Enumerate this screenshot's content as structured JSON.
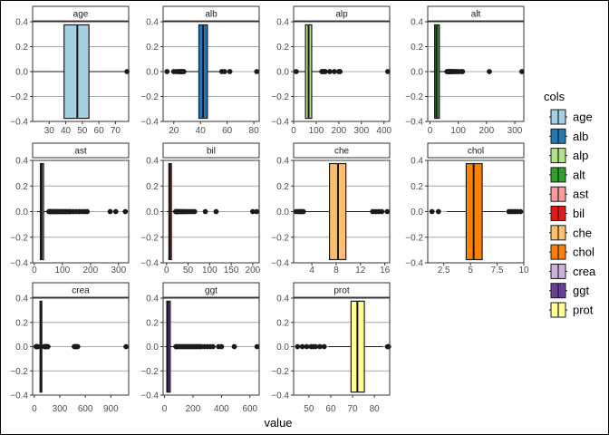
{
  "chart_data": {
    "type": "boxplot",
    "xlabel": "value",
    "legend": {
      "title": "cols",
      "position": "right"
    },
    "facets": [
      {
        "name": "age",
        "color": "#a6cee3",
        "stats": {
          "whisker_low": 19,
          "q1": 39,
          "median": 47,
          "q3": 54,
          "whisker_high": 77
        },
        "outliers": [
          77
        ],
        "xlim": [
          20,
          78
        ],
        "xticks": [
          30,
          40,
          50,
          60,
          70
        ],
        "ylim": [
          -0.4,
          0.4
        ],
        "yticks": [
          -0.4,
          -0.2,
          0.0,
          0.2,
          0.4
        ]
      },
      {
        "name": "alb",
        "color": "#1f78b4",
        "stats": {
          "whisker_low": 28,
          "q1": 38.8,
          "median": 41.9,
          "q3": 45.2,
          "whisker_high": 54.5
        },
        "outliers": [
          14.9,
          20,
          22,
          23,
          24,
          25,
          25.5,
          26,
          27,
          27.5,
          56,
          58,
          62,
          82.2
        ],
        "xlim": [
          12,
          84
        ],
        "xticks": [
          20,
          40,
          60,
          80
        ],
        "ylim": [
          -0.4,
          0.4
        ],
        "yticks": [
          -0.4,
          -0.2,
          0.0,
          0.2,
          0.4
        ]
      },
      {
        "name": "alp",
        "color": "#b2df8a",
        "stats": {
          "whisker_low": 21,
          "q1": 52.5,
          "median": 66.2,
          "q3": 80.1,
          "whisker_high": 121
        },
        "outliers": [
          11.3,
          125,
          128,
          135,
          140,
          160,
          180,
          200,
          205,
          416.6
        ],
        "xlim": [
          0,
          425
        ],
        "xticks": [
          0,
          100,
          200,
          300,
          400
        ],
        "ylim": [
          -0.4,
          0.4
        ],
        "yticks": [
          -0.4,
          -0.2,
          0.0,
          0.2,
          0.4
        ]
      },
      {
        "name": "alt",
        "color": "#33a02c",
        "stats": {
          "whisker_low": 0.9,
          "q1": 16.4,
          "median": 23,
          "q3": 33.1,
          "whisker_high": 58
        },
        "outliers": [
          60,
          62,
          65,
          68,
          70,
          72,
          75,
          78,
          80,
          85,
          90,
          95,
          100,
          110,
          115,
          210,
          325.3
        ],
        "xlim": [
          -8,
          332
        ],
        "xticks": [
          0,
          100,
          200,
          300
        ],
        "ylim": [
          -0.4,
          0.4
        ],
        "yticks": [
          -0.4,
          -0.2,
          0.0,
          0.2,
          0.4
        ]
      },
      {
        "name": "ast",
        "color": "#fb9a99",
        "stats": {
          "whisker_low": 10.6,
          "q1": 21.6,
          "median": 25.9,
          "q3": 32.9,
          "whisker_high": 49.8
        },
        "outliers": [
          52,
          55,
          58,
          60,
          64,
          68,
          72,
          76,
          80,
          85,
          90,
          95,
          100,
          105,
          110,
          115,
          120,
          125,
          130,
          140,
          150,
          160,
          170,
          180,
          188,
          270,
          290,
          324
        ],
        "xlim": [
          -6,
          336
        ],
        "xticks": [
          0,
          100,
          200,
          300
        ],
        "ylim": [
          -0.4,
          0.4
        ],
        "yticks": [
          -0.4,
          -0.2,
          0.0,
          0.2,
          0.4
        ]
      },
      {
        "name": "bil",
        "color": "#e31a1c",
        "stats": {
          "whisker_low": 0.8,
          "q1": 5.3,
          "median": 7.3,
          "q3": 11.2,
          "whisker_high": 20
        },
        "outliers": [
          21,
          22,
          24,
          25,
          27,
          30,
          32,
          35,
          38,
          42,
          45,
          50,
          55,
          60,
          65,
          90,
          115,
          200,
          209
        ],
        "xlim": [
          -8,
          215
        ],
        "xticks": [
          0,
          50,
          100,
          150,
          200
        ],
        "ylim": [
          -0.4,
          0.4
        ],
        "yticks": [
          -0.4,
          -0.2,
          0.0,
          0.2,
          0.4
        ]
      },
      {
        "name": "che",
        "color": "#fdbf6f",
        "stats": {
          "whisker_low": 2.9,
          "q1": 6.9,
          "median": 8.3,
          "q3": 9.6,
          "whisker_high": 13.6
        },
        "outliers": [
          1.4,
          1.8,
          2.0,
          2.2,
          2.4,
          2.6,
          14,
          14.5,
          15,
          15.5,
          16.4
        ],
        "xlim": [
          1.0,
          16.8
        ],
        "xticks": [
          4,
          8,
          12,
          16
        ],
        "ylim": [
          -0.4,
          0.4
        ],
        "yticks": [
          -0.4,
          -0.2,
          0.0,
          0.2,
          0.4
        ]
      },
      {
        "name": "chol",
        "color": "#ff7f00",
        "stats": {
          "whisker_low": 2.8,
          "q1": 4.6,
          "median": 5.3,
          "q3": 6.1,
          "whisker_high": 8.3
        },
        "outliers": [
          1.4,
          2.0,
          8.6,
          8.8,
          9.0,
          9.2,
          9.4,
          9.7
        ],
        "xlim": [
          1.0,
          10.0
        ],
        "xticks": [
          2.5,
          5.0,
          7.5,
          10.0
        ],
        "ylim": [
          -0.4,
          0.4
        ],
        "yticks": [
          -0.4,
          -0.2,
          0.0,
          0.2,
          0.4
        ]
      },
      {
        "name": "crea",
        "color": "#cab2d6",
        "stats": {
          "whisker_low": 8,
          "q1": 67,
          "median": 77,
          "q3": 88,
          "whisker_high": 115
        },
        "outliers": [
          20,
          25,
          30,
          35,
          40,
          118,
          125,
          130,
          135,
          140,
          150,
          160,
          470,
          480,
          490,
          500,
          510,
          1079
        ],
        "xlim": [
          -20,
          1110
        ],
        "xticks": [
          0,
          300,
          600,
          900
        ],
        "ylim": [
          -0.4,
          0.4
        ],
        "yticks": [
          -0.4,
          -0.2,
          0.0,
          0.2,
          0.4
        ]
      },
      {
        "name": "ggt",
        "color": "#6a3d9a",
        "stats": {
          "whisker_low": 4.5,
          "q1": 15.7,
          "median": 23.3,
          "q3": 40.2,
          "whisker_high": 76
        },
        "outliers": [
          80,
          85,
          90,
          100,
          110,
          120,
          130,
          140,
          150,
          160,
          170,
          180,
          190,
          200,
          210,
          220,
          230,
          240,
          250,
          260,
          280,
          300,
          320,
          340,
          380,
          400,
          490,
          650
        ],
        "xlim": [
          -10,
          665
        ],
        "xticks": [
          0,
          200,
          400,
          600
        ],
        "ylim": [
          -0.4,
          0.4
        ],
        "yticks": [
          -0.4,
          -0.2,
          0.0,
          0.2,
          0.4
        ]
      },
      {
        "name": "prot",
        "color": "#ffff99",
        "stats": {
          "whisker_low": 59,
          "q1": 69.3,
          "median": 72.2,
          "q3": 75.4,
          "whisker_high": 84
        },
        "outliers": [
          44.8,
          47,
          49,
          51,
          52,
          53,
          55,
          57,
          86,
          86.5
        ],
        "xlim": [
          43,
          87
        ],
        "xticks": [
          50,
          60,
          70,
          80
        ],
        "ylim": [
          -0.4,
          0.4
        ],
        "yticks": [
          -0.4,
          -0.2,
          0.0,
          0.2,
          0.4
        ]
      }
    ]
  }
}
